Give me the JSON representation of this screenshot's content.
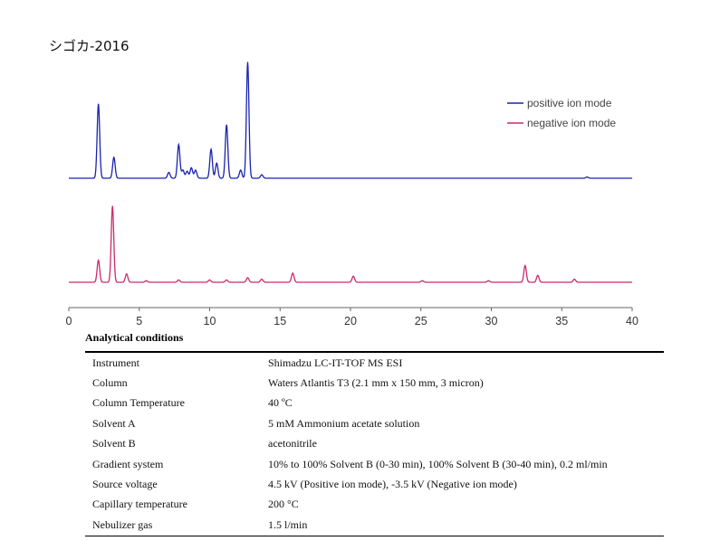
{
  "title": "シゴカ-2016",
  "chart_data": {
    "type": "line",
    "xlim": [
      0,
      40
    ],
    "x_ticks": [
      0,
      5,
      10,
      15,
      20,
      25,
      30,
      35,
      40
    ],
    "x_tick_labels": [
      "0",
      "5",
      "10",
      "15",
      "20",
      "25",
      "30",
      "35",
      "40"
    ],
    "legend_position": "top-right",
    "series": [
      {
        "name": "positive ion mode",
        "color": "#1a23b0",
        "peaks": [
          {
            "x": 2.1,
            "h": 0.64
          },
          {
            "x": 3.2,
            "h": 0.18
          },
          {
            "x": 7.1,
            "h": 0.05
          },
          {
            "x": 7.8,
            "h": 0.29
          },
          {
            "x": 8.1,
            "h": 0.07
          },
          {
            "x": 8.4,
            "h": 0.06
          },
          {
            "x": 8.7,
            "h": 0.09
          },
          {
            "x": 9.0,
            "h": 0.07
          },
          {
            "x": 10.1,
            "h": 0.25
          },
          {
            "x": 10.5,
            "h": 0.13
          },
          {
            "x": 11.2,
            "h": 0.46
          },
          {
            "x": 12.2,
            "h": 0.07
          },
          {
            "x": 12.7,
            "h": 1.0
          },
          {
            "x": 13.7,
            "h": 0.03
          },
          {
            "x": 36.8,
            "h": 0.01
          }
        ]
      },
      {
        "name": "negative ion mode",
        "color": "#cc2a6a",
        "peaks": [
          {
            "x": 2.1,
            "h": 0.29
          },
          {
            "x": 3.1,
            "h": 1.0
          },
          {
            "x": 4.1,
            "h": 0.11
          },
          {
            "x": 5.5,
            "h": 0.02
          },
          {
            "x": 7.8,
            "h": 0.03
          },
          {
            "x": 10.0,
            "h": 0.03
          },
          {
            "x": 11.2,
            "h": 0.03
          },
          {
            "x": 12.7,
            "h": 0.06
          },
          {
            "x": 13.7,
            "h": 0.04
          },
          {
            "x": 15.9,
            "h": 0.12
          },
          {
            "x": 20.2,
            "h": 0.08
          },
          {
            "x": 25.1,
            "h": 0.02
          },
          {
            "x": 29.8,
            "h": 0.02
          },
          {
            "x": 32.4,
            "h": 0.22
          },
          {
            "x": 33.3,
            "h": 0.09
          },
          {
            "x": 35.9,
            "h": 0.04
          }
        ]
      }
    ]
  },
  "conditions": {
    "title": "Analytical conditions",
    "rows": [
      {
        "label": "Instrument",
        "value": "Shimadzu LC-IT-TOF MS ESI"
      },
      {
        "label": "Column",
        "value": "Waters Atlantis T3 (2.1 mm x 150 mm, 3 micron)"
      },
      {
        "label": "Column Temperature",
        "value": "40 ºC"
      },
      {
        "label": "Solvent A",
        "value": "5 mM Ammonium acetate solution"
      },
      {
        "label": "Solvent B",
        "value": "acetonitrile"
      },
      {
        "label": "Gradient system",
        "value": "10% to 100% Solvent B (0-30 min), 100% Solvent B (30-40 min), 0.2 ml/min"
      },
      {
        "label": "Source voltage",
        "value": "4.5 kV (Positive ion mode), -3.5 kV (Negative ion mode)"
      },
      {
        "label": "Capillary temperature",
        "value": "200 °C"
      },
      {
        "label": "Nebulizer gas",
        "value": "1.5 l/min"
      }
    ]
  }
}
